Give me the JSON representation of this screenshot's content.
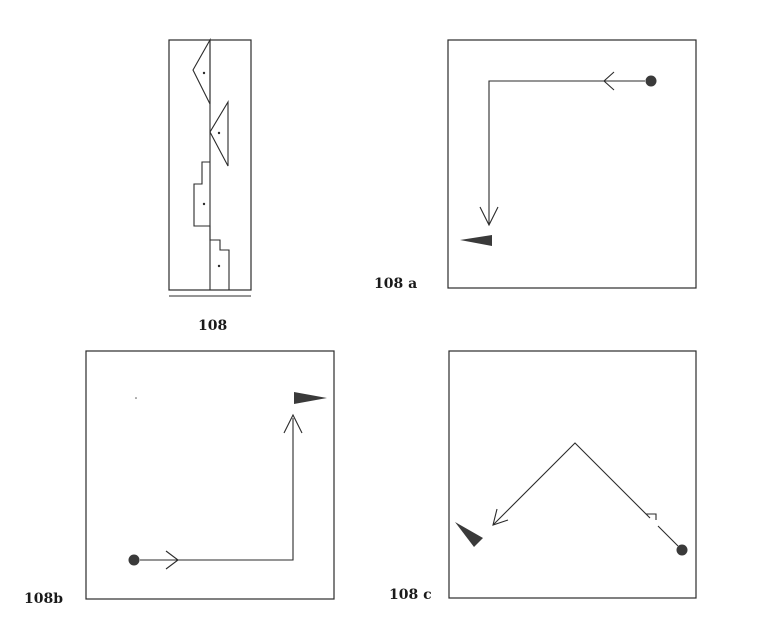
{
  "labels": {
    "main": "108",
    "a": "108 a",
    "b": "108b",
    "c": "108 c"
  },
  "colors": {
    "ink": "#2b2b2b",
    "marker": "#3a3a3a"
  }
}
